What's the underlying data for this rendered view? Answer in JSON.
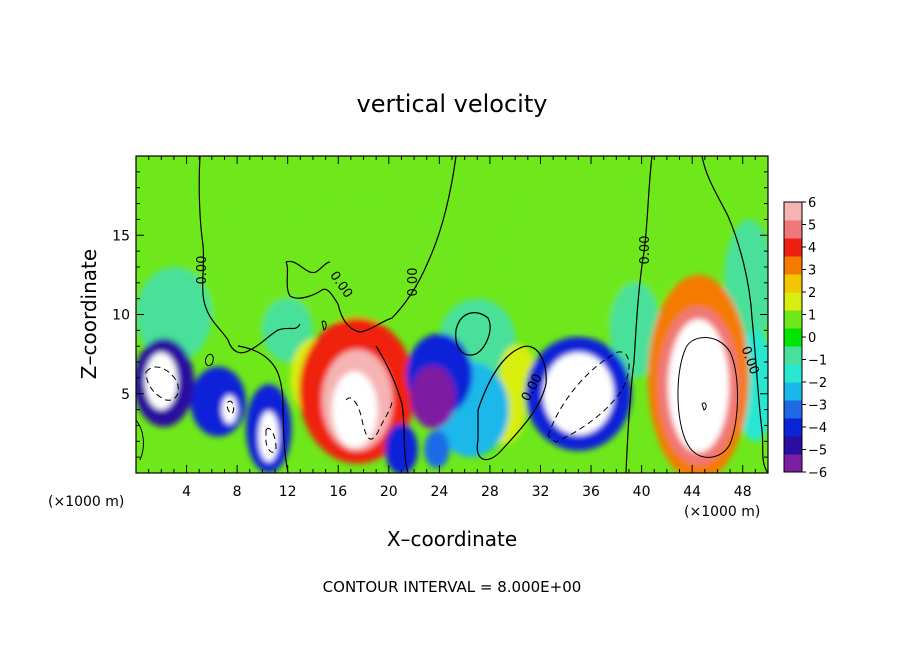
{
  "chart_data": {
    "type": "heatmap",
    "title": "vertical velocity",
    "xlabel": "X–coordinate",
    "ylabel": "Z–coordinate",
    "x_unit_left": "(×1000 m)",
    "x_unit_right": "(×1000 m)",
    "footer": "CONTOUR INTERVAL = 8.000E+00",
    "xlim": [
      0,
      50
    ],
    "ylim": [
      0,
      20
    ],
    "x_ticks": [
      4,
      8,
      12,
      16,
      20,
      24,
      28,
      32,
      36,
      40,
      44,
      48
    ],
    "y_ticks": [
      5,
      10,
      15
    ],
    "colorbar": {
      "min": -6,
      "max": 6,
      "ticks": [
        6,
        5,
        4,
        3,
        2,
        1,
        0,
        -1,
        -2,
        -3,
        -4,
        -5,
        -6
      ],
      "colors": [
        "#7d1fa3",
        "#2a0ea0",
        "#0a24d8",
        "#1e6ae6",
        "#1ab8ea",
        "#28e8d2",
        "#48e09a",
        "#00e600",
        "#6ee81a",
        "#d8ee10",
        "#f2c600",
        "#f57a00",
        "#f02010",
        "#f07878",
        "#f5b3b3"
      ]
    },
    "contour_labels": [
      "0.00",
      "0.00",
      "0.00",
      "0.00",
      "0.00",
      "0.00"
    ],
    "cells": [
      {
        "x": 2.2,
        "z": 5.7,
        "rx": 2.4,
        "rz": 2.8,
        "v": -4.5
      },
      {
        "x": 2.0,
        "z": 5.8,
        "rx": 1.3,
        "rz": 1.8,
        "v": -6.6
      },
      {
        "x": 6.5,
        "z": 4.5,
        "rx": 2.2,
        "rz": 2.2,
        "v": -4.2
      },
      {
        "x": 7.4,
        "z": 4.0,
        "rx": 0.6,
        "rz": 0.9,
        "v": -6.6
      },
      {
        "x": 10.5,
        "z": 2.8,
        "rx": 1.8,
        "rz": 2.8,
        "v": -4.2
      },
      {
        "x": 10.5,
        "z": 2.3,
        "rx": 0.8,
        "rz": 1.6,
        "v": -6.6
      },
      {
        "x": 14.2,
        "z": 6.0,
        "rx": 2.0,
        "rz": 2.5,
        "v": 1.2
      },
      {
        "x": 17.5,
        "z": 5.2,
        "rx": 4.6,
        "rz": 4.6,
        "v": 3.8
      },
      {
        "x": 17.5,
        "z": 4.6,
        "rx": 2.8,
        "rz": 3.2,
        "v": 5.8
      },
      {
        "x": 17.3,
        "z": 4.0,
        "rx": 1.8,
        "rz": 2.4,
        "v": 7.0
      },
      {
        "x": 24.0,
        "z": 6.2,
        "rx": 2.6,
        "rz": 2.6,
        "v": -3.8
      },
      {
        "x": 23.5,
        "z": 4.8,
        "rx": 1.8,
        "rz": 2.0,
        "v": -5.2
      },
      {
        "x": 23.8,
        "z": 1.5,
        "rx": 1.0,
        "rz": 1.2,
        "v": -3.0
      },
      {
        "x": 26.5,
        "z": 4.0,
        "rx": 3.0,
        "rz": 3.0,
        "v": -2.5
      },
      {
        "x": 29.0,
        "z": 4.0,
        "rx": 1.8,
        "rz": 2.2,
        "v": 1.5
      },
      {
        "x": 30.2,
        "z": 6.5,
        "rx": 1.4,
        "rz": 1.6,
        "v": 1.6
      },
      {
        "x": 35.0,
        "z": 5.0,
        "rx": 4.2,
        "rz": 3.6,
        "v": -4.3
      },
      {
        "x": 35.0,
        "z": 5.0,
        "rx": 2.8,
        "rz": 2.6,
        "v": -6.6
      },
      {
        "x": 44.5,
        "z": 6.0,
        "rx": 4.0,
        "rz": 6.5,
        "v": 3.2
      },
      {
        "x": 44.5,
        "z": 5.5,
        "rx": 3.2,
        "rz": 5.0,
        "v": 5.2
      },
      {
        "x": 44.5,
        "z": 5.5,
        "rx": 2.4,
        "rz": 4.2,
        "v": 7.0
      },
      {
        "x": 49.0,
        "z": 5.5,
        "rx": 1.6,
        "rz": 3.5,
        "v": -2.0
      },
      {
        "x": 21.0,
        "z": 1.5,
        "rx": 1.3,
        "rz": 1.6,
        "v": -4.2
      },
      {
        "x": 18.0,
        "z": 13.5,
        "rx": 8.0,
        "rz": 4.0,
        "v": 0.6
      },
      {
        "x": 9.0,
        "z": 13.0,
        "rx": 5.0,
        "rz": 4.0,
        "v": 0.8
      },
      {
        "x": 36.0,
        "z": 14.0,
        "rx": 7.0,
        "rz": 5.0,
        "v": 0.5
      },
      {
        "x": 3.0,
        "z": 10.0,
        "rx": 3.0,
        "rz": 3.0,
        "v": -0.9
      },
      {
        "x": 12.0,
        "z": 9.0,
        "rx": 2.0,
        "rz": 2.0,
        "v": -0.8
      },
      {
        "x": 27.0,
        "z": 8.5,
        "rx": 3.0,
        "rz": 2.5,
        "v": -1.1
      },
      {
        "x": 39.5,
        "z": 9.0,
        "rx": 2.0,
        "rz": 3.0,
        "v": -0.9
      },
      {
        "x": 48.5,
        "z": 12.0,
        "rx": 2.0,
        "rz": 4.0,
        "v": -0.4
      }
    ]
  }
}
